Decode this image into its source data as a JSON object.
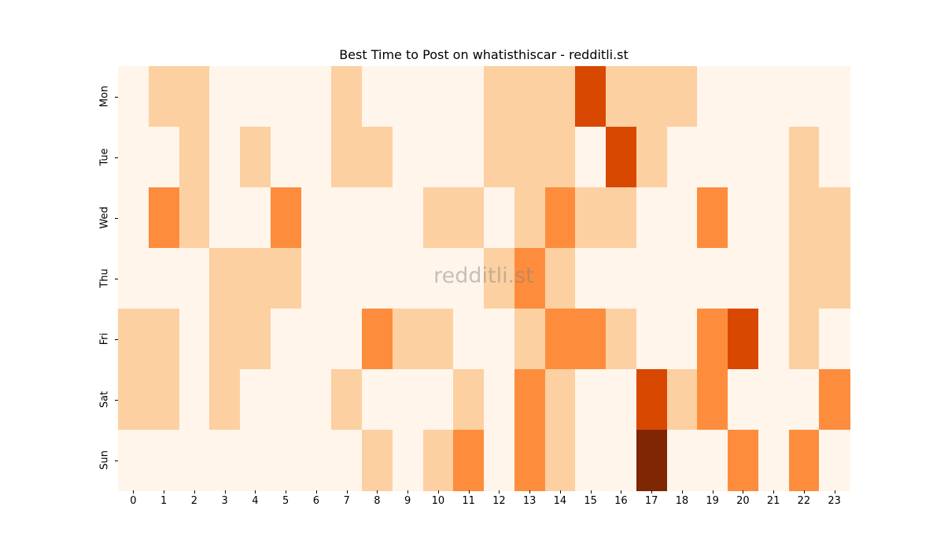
{
  "chart_data": {
    "type": "heatmap",
    "title": "Best Time to Post on whatisthiscar - redditli.st",
    "watermark": "redditli.st",
    "xlabel": "",
    "ylabel": "",
    "x": [
      "0",
      "1",
      "2",
      "3",
      "4",
      "5",
      "6",
      "7",
      "8",
      "9",
      "10",
      "11",
      "12",
      "13",
      "14",
      "15",
      "16",
      "17",
      "18",
      "19",
      "20",
      "21",
      "22",
      "23"
    ],
    "y": [
      "Mon",
      "Tue",
      "Wed",
      "Thu",
      "Fri",
      "Sat",
      "Sun"
    ],
    "colormap": "Oranges",
    "color_levels": [
      "#fff5eb",
      "#fdd0a2",
      "#fd8d3c",
      "#d94801",
      "#7f2704"
    ],
    "colorbar": false,
    "grid": false,
    "values": [
      [
        0,
        1,
        1,
        0,
        0,
        0,
        0,
        1,
        0,
        0,
        0,
        0,
        1,
        1,
        1,
        3,
        1,
        1,
        1,
        0,
        0,
        0,
        0,
        0
      ],
      [
        0,
        0,
        1,
        0,
        1,
        0,
        0,
        1,
        1,
        0,
        0,
        0,
        1,
        1,
        1,
        0,
        3,
        1,
        0,
        0,
        0,
        0,
        1,
        0
      ],
      [
        0,
        2,
        1,
        0,
        0,
        2,
        0,
        0,
        0,
        0,
        1,
        1,
        0,
        1,
        2,
        1,
        1,
        0,
        0,
        2,
        0,
        0,
        1,
        1
      ],
      [
        0,
        0,
        0,
        1,
        1,
        1,
        0,
        0,
        0,
        0,
        0,
        0,
        1,
        2,
        1,
        0,
        0,
        0,
        0,
        0,
        0,
        0,
        1,
        1
      ],
      [
        1,
        1,
        0,
        1,
        1,
        0,
        0,
        0,
        2,
        1,
        1,
        0,
        0,
        1,
        2,
        2,
        1,
        0,
        0,
        2,
        3,
        0,
        1,
        0
      ],
      [
        1,
        1,
        0,
        1,
        0,
        0,
        0,
        1,
        0,
        0,
        0,
        1,
        0,
        2,
        1,
        0,
        0,
        3,
        1,
        2,
        0,
        0,
        0,
        2
      ],
      [
        0,
        0,
        0,
        0,
        0,
        0,
        0,
        0,
        1,
        0,
        1,
        2,
        0,
        2,
        1,
        0,
        0,
        4,
        0,
        0,
        2,
        0,
        2,
        0
      ]
    ]
  }
}
